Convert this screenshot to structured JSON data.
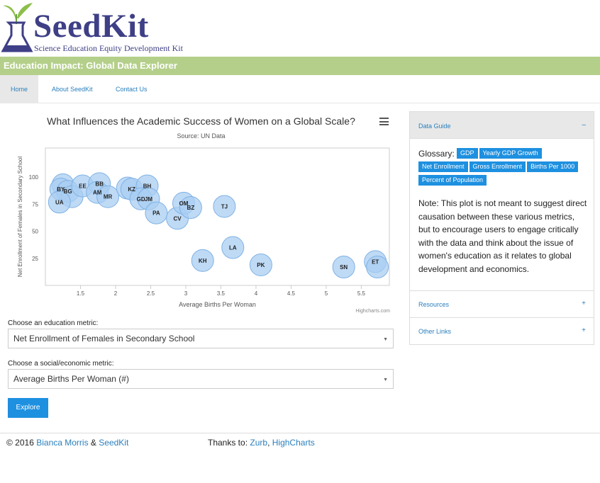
{
  "site": {
    "title": "SeedKit",
    "subtitle": "Science Education Equity Development Kit",
    "banner": "Education Impact: Global Data Explorer"
  },
  "nav": {
    "items": [
      {
        "label": "Home"
      },
      {
        "label": "About SeedKit"
      },
      {
        "label": "Contact Us"
      }
    ]
  },
  "chart_data": {
    "type": "scatter",
    "title": "What Influences the Academic Success of Women on a Global Scale?",
    "subtitle": "Source: UN Data",
    "xlabel": "Average Births Per Woman",
    "ylabel": "Net Enrollment of Females in Secondary School",
    "xlim": [
      1.0,
      5.9
    ],
    "ylim": [
      0,
      127
    ],
    "x_ticks": [
      "1.5",
      "2",
      "2.5",
      "3",
      "3.5",
      "4",
      "4.5",
      "5",
      "5.5"
    ],
    "y_ticks": [
      "25",
      "50",
      "75",
      "100"
    ],
    "grid": false,
    "credits": "Highcharts.com",
    "points": [
      {
        "label": "",
        "x": 1.25,
        "y": 93
      },
      {
        "label": "BY",
        "x": 1.22,
        "y": 89
      },
      {
        "label": "BG",
        "x": 1.32,
        "y": 87
      },
      {
        "label": "",
        "x": 1.38,
        "y": 82
      },
      {
        "label": "UA",
        "x": 1.2,
        "y": 77
      },
      {
        "label": "EE",
        "x": 1.53,
        "y": 92
      },
      {
        "label": "BB",
        "x": 1.77,
        "y": 94
      },
      {
        "label": "AM",
        "x": 1.74,
        "y": 86
      },
      {
        "label": "MR",
        "x": 1.89,
        "y": 82
      },
      {
        "label": "",
        "x": 2.17,
        "y": 90
      },
      {
        "label": "KZ",
        "x": 2.23,
        "y": 89
      },
      {
        "label": "BH",
        "x": 2.45,
        "y": 92
      },
      {
        "label": "GD",
        "x": 2.36,
        "y": 80
      },
      {
        "label": "JM",
        "x": 2.47,
        "y": 80
      },
      {
        "label": "PA",
        "x": 2.58,
        "y": 67
      },
      {
        "label": "CV",
        "x": 2.88,
        "y": 62
      },
      {
        "label": "OM",
        "x": 2.97,
        "y": 76
      },
      {
        "label": "BZ",
        "x": 3.07,
        "y": 72
      },
      {
        "label": "TJ",
        "x": 3.55,
        "y": 73
      },
      {
        "label": "KH",
        "x": 3.24,
        "y": 23
      },
      {
        "label": "LA",
        "x": 3.67,
        "y": 35
      },
      {
        "label": "PK",
        "x": 4.07,
        "y": 19
      },
      {
        "label": "SN",
        "x": 5.25,
        "y": 17
      },
      {
        "label": "ET",
        "x": 5.7,
        "y": 22
      },
      {
        "label": "",
        "x": 5.73,
        "y": 17
      }
    ]
  },
  "form": {
    "education_label": "Choose an education metric:",
    "education_value": "Net Enrollment of Females in Secondary School",
    "social_label": "Choose a social/economic metric:",
    "social_value": "Average Births Per Woman (#)",
    "explore_button": "Explore"
  },
  "sidebar": {
    "data_guide": {
      "label": "Data Guide",
      "symbol": "–"
    },
    "glossary_label": "Glossary:",
    "glossary_tags": [
      "GDP",
      "Yearly GDP Growth",
      "Net Enrollment",
      "Gross Enrollment",
      "Births Per 1000",
      "Percent of Population"
    ],
    "note": "Note: This plot is not meant to suggest direct causation between these various metrics, but to encourage users to engage critically with the data and think about the issue of women's education as it relates to global development and economics.",
    "resources": {
      "label": "Resources",
      "symbol": "+"
    },
    "other_links": {
      "label": "Other Links",
      "symbol": "+"
    }
  },
  "footer": {
    "copyright": "© 2016",
    "author": "Bianca Morris",
    "amp": "&",
    "seedkit": "SeedKit",
    "thanks": "Thanks to:",
    "zurb": "Zurb",
    "comma": ",",
    "highcharts": "HighCharts"
  },
  "colors": {
    "brand": "#3e3f86",
    "banner": "#b4cf8a",
    "accent": "#1e90e0",
    "bubble_fill": "#a9cdf2",
    "bubble_stroke": "#7fb2e5"
  }
}
